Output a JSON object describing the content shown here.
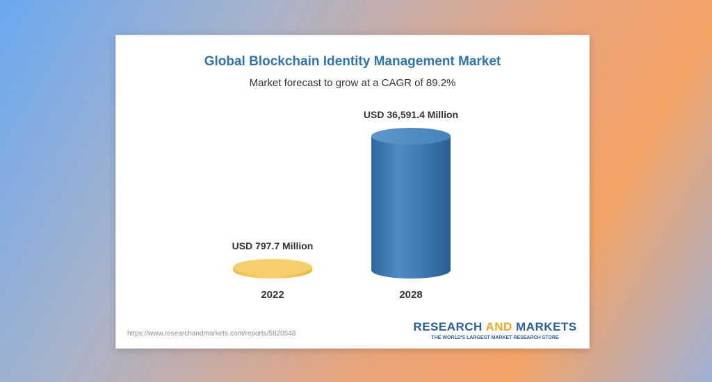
{
  "chart_data": {
    "type": "bar",
    "title": "Global Blockchain Identity Management Market",
    "subtitle": "Market forecast to grow at a CAGR of 89.2%",
    "categories": [
      "2022",
      "2028"
    ],
    "values": [
      797.7,
      36591.4
    ],
    "value_labels": [
      "USD 797.7 Million",
      "USD 36,591.4 Million"
    ],
    "unit": "USD Million",
    "ylim": [
      0,
      36591.4
    ],
    "colors": [
      "#f5c95c",
      "#3f7ab2"
    ],
    "xlabel": "",
    "ylabel": "",
    "grid": false
  },
  "footer": {
    "source_url": "https://www.researchandmarkets.com/reports/5820548",
    "brand_research": "RESEARCH",
    "brand_and": "AND",
    "brand_markets": "MARKETS",
    "brand_tagline": "THE WORLD'S LARGEST MARKET RESEARCH STORE"
  }
}
